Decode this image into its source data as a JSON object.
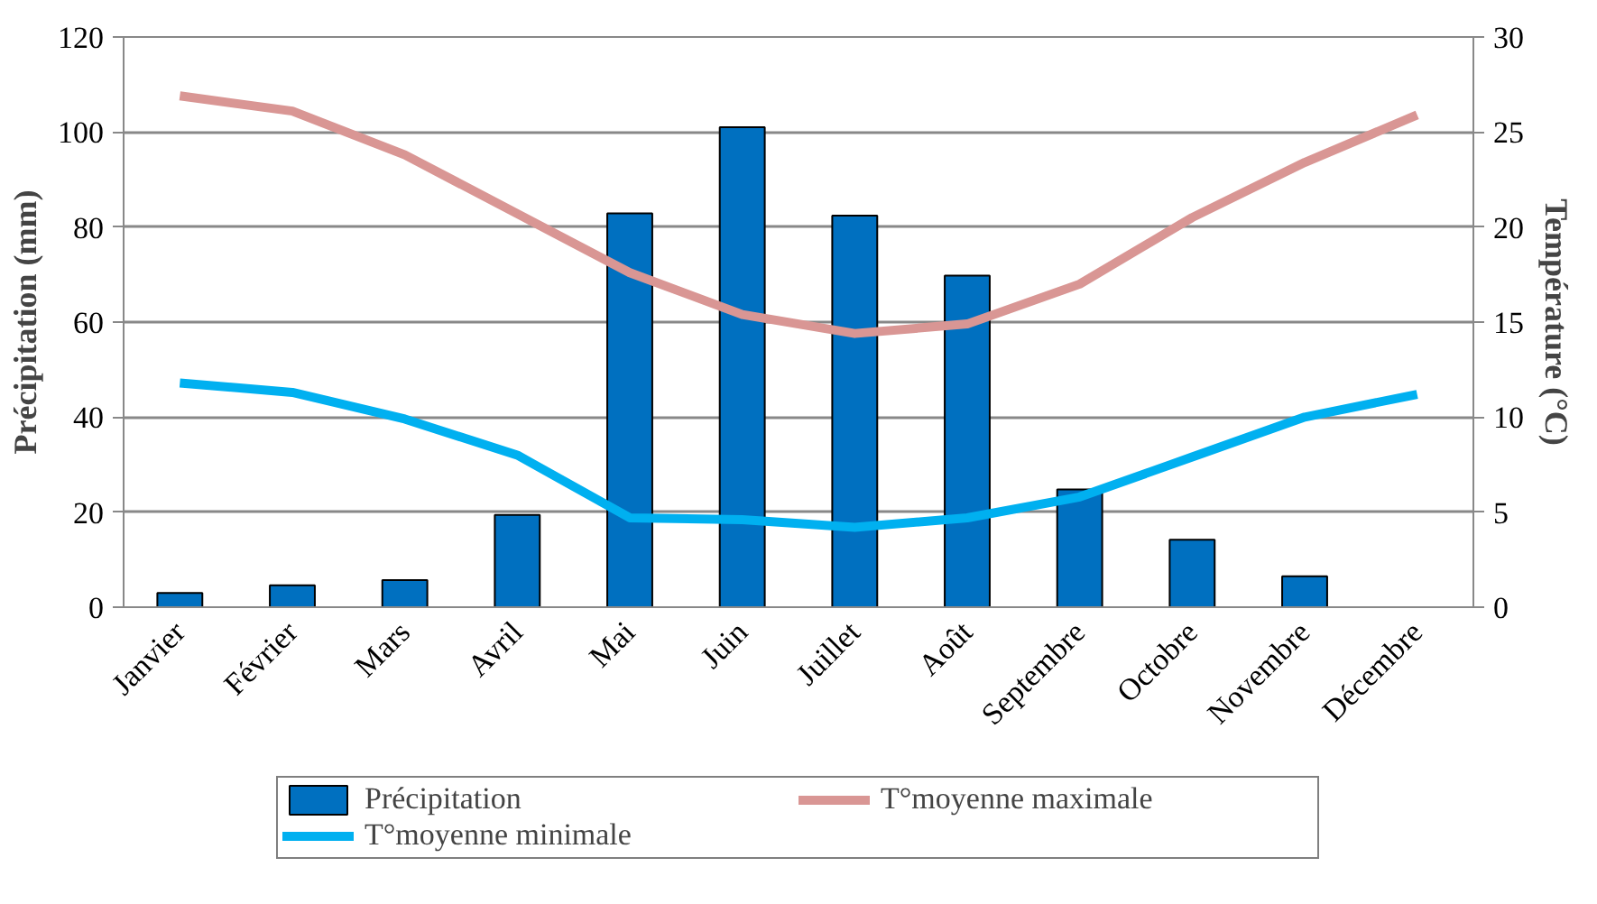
{
  "chart_data": {
    "type": "bar",
    "ylabel": "Précipitation (mm)",
    "y2label": "Température (°C)",
    "categories": [
      "Janvier",
      "Février",
      "Mars",
      "Avril",
      "Mai",
      "Juin",
      "Juillet",
      "Août",
      "Septembre",
      "Octobre",
      "Novembre",
      "Décembre"
    ],
    "series": [
      {
        "name": "Précipitation",
        "color": "#0070c0",
        "values": [
          3.0,
          4.6,
          5.7,
          19.4,
          82.9,
          101,
          82.4,
          69.8,
          24.8,
          14.2,
          6.5,
          null
        ]
      },
      {
        "name": "T°moyenne maximale",
        "type": "line",
        "axis": "y2",
        "color": "#d99694",
        "values": [
          26.9,
          26.1,
          23.8,
          20.7,
          17.6,
          15.4,
          14.4,
          14.9,
          17.0,
          20.5,
          23.4,
          25.9
        ]
      },
      {
        "name": "T°moyenne minimale",
        "type": "line",
        "axis": "y2",
        "color": "#00b0f0",
        "values": [
          11.8,
          11.3,
          9.9,
          8.0,
          4.7,
          4.6,
          4.2,
          4.7,
          5.8,
          7.9,
          10.0,
          11.2
        ]
      }
    ],
    "ylim": [
      0,
      120
    ],
    "yticks": [
      0,
      20,
      40,
      60,
      80,
      100,
      120
    ],
    "y2lim": [
      0,
      30
    ],
    "y2ticks": [
      0,
      5,
      10,
      15,
      20,
      25,
      30
    ],
    "grid": "y",
    "legend": "bottom",
    "marker": "none",
    "line_style": "solid"
  }
}
